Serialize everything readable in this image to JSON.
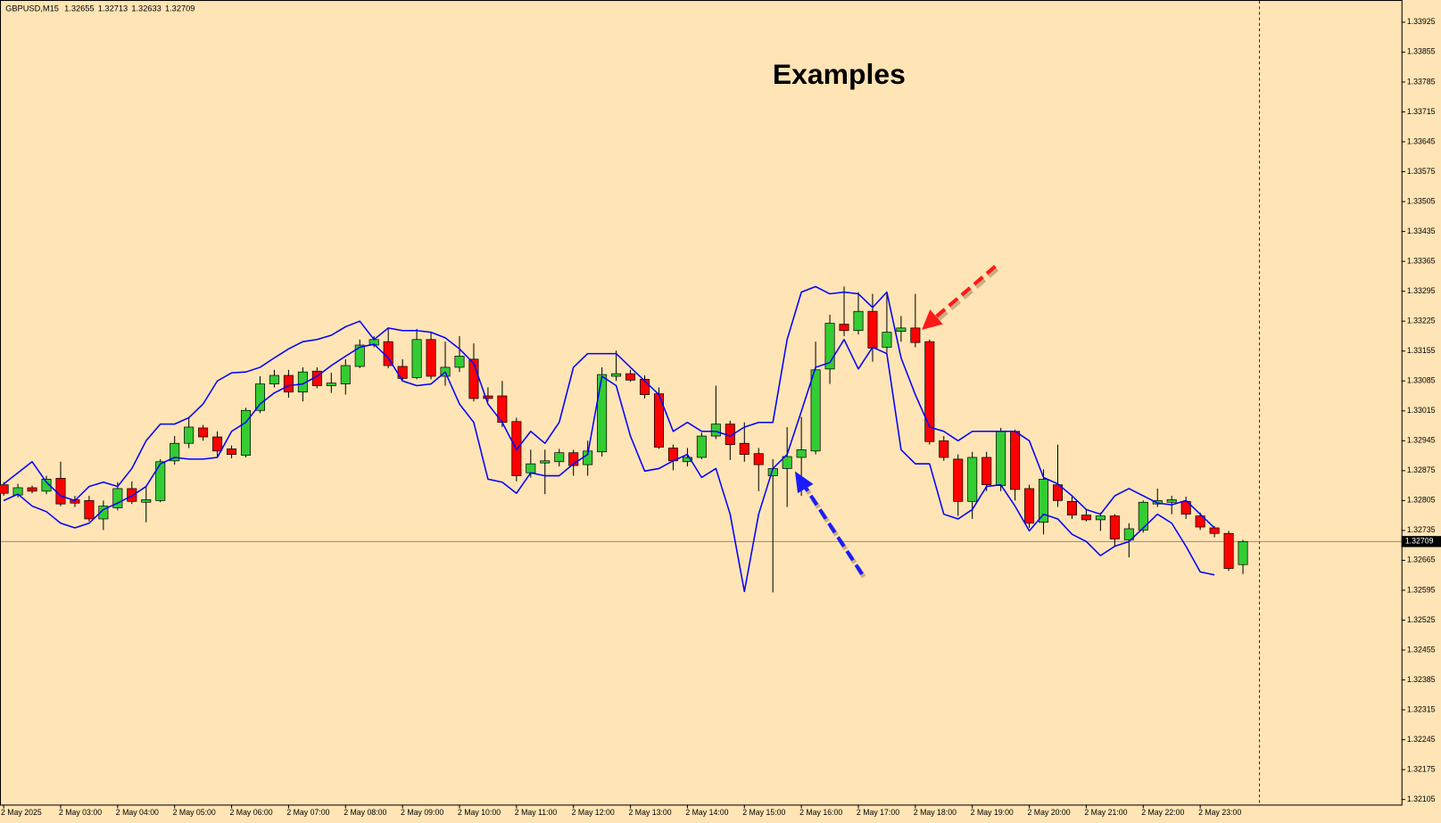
{
  "chart_data": {
    "type": "candlestick",
    "title": "Examples",
    "symbol": "GBPUSD,M15",
    "header_ohlc": [
      1.32655,
      1.32713,
      1.32633,
      1.32709
    ],
    "last_price": 1.32709,
    "up_color": "#33cc33",
    "down_color": "#ff0000",
    "categories": [
      "2 May 2025",
      null,
      null,
      null,
      "2 May 03:00",
      null,
      null,
      null,
      "2 May 04:00",
      null,
      null,
      null,
      "2 May 05:00",
      null,
      null,
      null,
      "2 May 06:00",
      null,
      null,
      null,
      "2 May 07:00",
      null,
      null,
      null,
      "2 May 08:00",
      null,
      null,
      null,
      "2 May 09:00",
      null,
      null,
      null,
      "2 May 10:00",
      null,
      null,
      null,
      "2 May 11:00",
      null,
      null,
      null,
      "2 May 12:00",
      null,
      null,
      null,
      "2 May 13:00",
      null,
      null,
      null,
      "2 May 14:00",
      null,
      null,
      null,
      "2 May 15:00",
      null,
      null,
      null,
      "2 May 16:00",
      null,
      null,
      null,
      "2 May 17:00",
      null,
      null,
      null,
      "2 May 18:00",
      null,
      null,
      null,
      "2 May 19:00",
      null,
      null,
      null,
      "2 May 20:00",
      null,
      null,
      null,
      "2 May 21:00",
      null,
      null,
      null,
      "2 May 22:00",
      null,
      null,
      null,
      "2 May 23:00",
      null,
      null,
      null
    ],
    "open": [
      1.32842,
      1.32818,
      1.32835,
      1.32827,
      1.32857,
      1.32807,
      1.32805,
      1.32762,
      1.32788,
      1.32833,
      1.32801,
      1.32805,
      1.32898,
      1.32939,
      1.32975,
      1.32954,
      1.32926,
      1.32911,
      1.33016,
      1.33078,
      1.33098,
      1.33059,
      1.33108,
      1.33074,
      1.33078,
      1.33119,
      1.33169,
      1.33177,
      1.33119,
      1.33093,
      1.33182,
      1.33096,
      1.33117,
      1.33136,
      1.3305,
      1.3305,
      1.3299,
      1.3287,
      1.32893,
      1.32896,
      1.32917,
      1.32889,
      1.32919,
      1.33096,
      1.33102,
      1.33089,
      1.33055,
      1.32928,
      1.32896,
      1.32906,
      1.32956,
      1.32984,
      1.32939,
      1.32915,
      1.32863,
      1.3288,
      1.32906,
      1.32921,
      1.33113,
      1.33218,
      1.33203,
      1.33248,
      1.33164,
      1.33201,
      1.33209,
      1.33177,
      1.32945,
      1.32902,
      1.32803,
      1.32906,
      1.3284,
      1.32967,
      1.32833,
      1.32754,
      1.32842,
      1.32803,
      1.32771,
      1.3276,
      1.32769,
      1.32713,
      1.32736,
      1.32797,
      1.32801,
      1.32803,
      1.32769,
      1.32741,
      1.32728,
      1.32655
    ],
    "high": [
      1.32848,
      1.32844,
      1.3284,
      1.32863,
      1.32896,
      1.32816,
      1.32816,
      1.32805,
      1.32848,
      1.3285,
      1.32838,
      1.32902,
      1.32956,
      1.32999,
      1.32982,
      1.32967,
      1.32934,
      1.33022,
      1.33096,
      1.33111,
      1.33111,
      1.33117,
      1.33117,
      1.33104,
      1.33136,
      1.33182,
      1.3319,
      1.33209,
      1.33136,
      1.33207,
      1.33199,
      1.33177,
      1.3319,
      1.33173,
      1.3307,
      1.33085,
      1.32999,
      1.32924,
      1.32924,
      1.32926,
      1.32924,
      1.32945,
      1.33117,
      1.33156,
      1.33111,
      1.33098,
      1.3307,
      1.32936,
      1.32928,
      1.32964,
      1.33074,
      1.32992,
      1.32988,
      1.32928,
      1.32902,
      1.32977,
      1.33001,
      1.33177,
      1.3324,
      1.33306,
      1.33293,
      1.33289,
      1.33293,
      1.33237,
      1.33289,
      1.33182,
      1.32956,
      1.32913,
      1.32919,
      1.32919,
      1.32975,
      1.32971,
      1.32842,
      1.32878,
      1.32936,
      1.32816,
      1.32784,
      1.32777,
      1.32773,
      1.32752,
      1.32805,
      1.32833,
      1.32816,
      1.32814,
      1.32777,
      1.32745,
      1.32734,
      1.32713
    ],
    "low": [
      1.32816,
      1.32812,
      1.32822,
      1.3282,
      1.32792,
      1.3279,
      1.32756,
      1.32736,
      1.32782,
      1.32797,
      1.32754,
      1.32801,
      1.32889,
      1.32928,
      1.32945,
      1.32908,
      1.32904,
      1.32906,
      1.3301,
      1.3307,
      1.33046,
      1.33037,
      1.33068,
      1.33057,
      1.33053,
      1.33115,
      1.33164,
      1.33115,
      1.33087,
      1.33089,
      1.33089,
      1.33074,
      1.33106,
      1.33037,
      1.33037,
      1.32977,
      1.3285,
      1.32859,
      1.3282,
      1.32885,
      1.32863,
      1.32863,
      1.32908,
      1.33085,
      1.33083,
      1.33044,
      1.32926,
      1.32876,
      1.32885,
      1.32902,
      1.32949,
      1.329,
      1.32896,
      1.32827,
      1.3259,
      1.3279,
      1.32816,
      1.32913,
      1.33078,
      1.3319,
      1.33194,
      1.3313,
      1.33151,
      1.33177,
      1.33164,
      1.32936,
      1.32898,
      1.32769,
      1.32762,
      1.32827,
      1.32827,
      1.32805,
      1.32741,
      1.32726,
      1.3279,
      1.32762,
      1.32756,
      1.32734,
      1.32698,
      1.32672,
      1.3273,
      1.3279,
      1.32773,
      1.32762,
      1.32736,
      1.32719,
      1.3264,
      1.32633
    ],
    "close": [
      1.32822,
      1.32835,
      1.32827,
      1.32855,
      1.32797,
      1.32799,
      1.32762,
      1.32792,
      1.32833,
      1.32803,
      1.32807,
      1.32896,
      1.32939,
      1.32977,
      1.32954,
      1.32921,
      1.32913,
      1.33016,
      1.33078,
      1.33098,
      1.33059,
      1.33106,
      1.33074,
      1.3308,
      1.33121,
      1.33169,
      1.33182,
      1.33121,
      1.33091,
      1.33182,
      1.33096,
      1.33117,
      1.33143,
      1.33044,
      1.33044,
      1.32988,
      1.32863,
      1.32891,
      1.32898,
      1.32917,
      1.32887,
      1.32921,
      1.331,
      1.33102,
      1.33087,
      1.33053,
      1.3293,
      1.32898,
      1.32906,
      1.32956,
      1.32984,
      1.32936,
      1.32913,
      1.32889,
      1.3288,
      1.32908,
      1.32924,
      1.33111,
      1.3322,
      1.33203,
      1.33248,
      1.33162,
      1.33199,
      1.33209,
      1.33175,
      1.32943,
      1.32906,
      1.32803,
      1.32906,
      1.32842,
      1.32967,
      1.32831,
      1.32752,
      1.32855,
      1.32805,
      1.32771,
      1.3276,
      1.32769,
      1.32715,
      1.32739,
      1.32801,
      1.32805,
      1.32807,
      1.32773,
      1.32743,
      1.32728,
      1.32646,
      1.32709
    ],
    "series": [
      {
        "color": "#0000ff",
        "values": [
          1.32844,
          1.3287,
          1.32896,
          1.32848,
          1.32816,
          1.32805,
          1.32838,
          1.32848,
          1.32838,
          1.3288,
          1.32945,
          1.32984,
          1.32984,
          1.32999,
          1.33031,
          1.33085,
          1.33104,
          1.33106,
          1.33117,
          1.33139,
          1.3316,
          1.33177,
          1.33182,
          1.33192,
          1.33212,
          1.33225,
          1.33182,
          1.33209,
          1.33203,
          1.33203,
          1.33199,
          1.33186,
          1.3316,
          1.33126,
          1.33031,
          1.32988,
          1.32924,
          1.32967,
          1.32939,
          1.32988,
          1.33117,
          1.33149,
          1.33149,
          1.33149,
          1.33117,
          1.33085,
          1.33053,
          1.32967,
          1.32988,
          1.32967,
          1.32967,
          1.32956,
          1.32977,
          1.32988,
          1.32988,
          1.33182,
          1.33293,
          1.33306,
          1.33289,
          1.33293,
          1.33289,
          1.33257,
          1.33293,
          1.33139,
          1.33053,
          1.32977,
          1.32967,
          1.32945,
          1.32967,
          1.32967,
          1.32967,
          1.32967,
          1.32945,
          1.32859,
          1.32844,
          1.32816,
          1.32784,
          1.32773,
          1.32816,
          1.32833,
          1.32816,
          1.32799,
          1.32795,
          1.32805,
          1.32773,
          1.32741,
          null,
          null
        ]
      },
      {
        "color": "#0000ff",
        "values": [
          1.32805,
          1.3282,
          1.32792,
          1.32779,
          1.32752,
          1.32741,
          1.32752,
          1.32784,
          1.32799,
          1.32816,
          1.32838,
          1.32891,
          1.32906,
          1.32902,
          1.32902,
          1.32906,
          1.32967,
          1.32988,
          1.33031,
          1.33057,
          1.33074,
          1.33078,
          1.33096,
          1.33121,
          1.33143,
          1.33164,
          1.33171,
          1.33139,
          1.33085,
          1.33074,
          1.33078,
          1.33106,
          1.33031,
          1.32988,
          1.32855,
          1.32848,
          1.32822,
          1.3287,
          1.32863,
          1.32863,
          1.32891,
          1.32913,
          1.33096,
          1.33074,
          1.32956,
          1.32874,
          1.3288,
          1.32898,
          1.32913,
          1.32859,
          1.3288,
          1.32773,
          1.32592,
          1.32773,
          1.3288,
          1.32913,
          1.33014,
          1.33117,
          1.33128,
          1.33182,
          1.33113,
          1.33164,
          1.33149,
          1.32924,
          1.32891,
          1.32891,
          1.32773,
          1.32762,
          1.32784,
          1.32838,
          1.32842,
          1.32792,
          1.32734,
          1.32773,
          1.32762,
          1.32726,
          1.32709,
          1.32676,
          1.32698,
          1.32709,
          1.32741,
          1.32773,
          1.32752,
          1.32698,
          1.32638,
          1.32631,
          null,
          null
        ]
      }
    ],
    "ylim": [
      1.32093,
      1.33977
    ],
    "yticks": [
      1.32105,
      1.32175,
      1.32245,
      1.32315,
      1.32385,
      1.32455,
      1.32525,
      1.32595,
      1.32665,
      1.32735,
      1.32805,
      1.32875,
      1.32945,
      1.33015,
      1.33085,
      1.33155,
      1.33225,
      1.33295,
      1.33365,
      1.33435,
      1.33505,
      1.33575,
      1.33645,
      1.33715,
      1.33785,
      1.33855,
      1.33925
    ]
  }
}
